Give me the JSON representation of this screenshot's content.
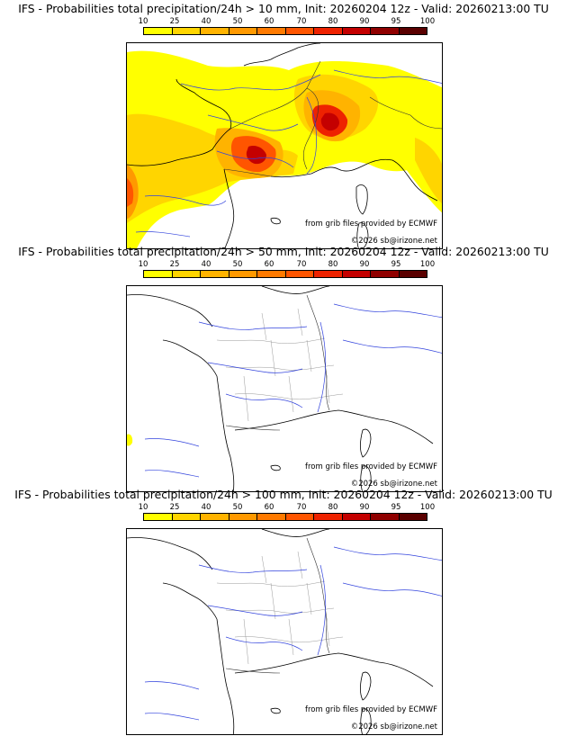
{
  "colorbar": {
    "ticks": [
      "10",
      "25",
      "40",
      "50",
      "60",
      "70",
      "80",
      "90",
      "95",
      "100"
    ],
    "colors": [
      "#ffff00",
      "#ffd500",
      "#ffb300",
      "#ff9900",
      "#ff7a00",
      "#ff5500",
      "#ee2200",
      "#c40000",
      "#8f0000",
      "#5a0000"
    ]
  },
  "credits": {
    "source": "from grib files provided by ECMWF",
    "copyright": "©2026 sb@irizone.net"
  },
  "panels": [
    {
      "title": "IFS - Probabilities total precipitation/24h > 10 mm, Init: 20260204 12z - Valid: 20260213:00 TU",
      "threshold_mm": 10
    },
    {
      "title": "IFS - Probabilities total precipitation/24h > 50 mm, Init: 20260204 12z - Valid: 20260213:00 TU",
      "threshold_mm": 50
    },
    {
      "title": "IFS - Probabilities total precipitation/24h > 100 mm, Init: 20260204 12z - Valid: 20260213:00 TU",
      "threshold_mm": 100
    }
  ]
}
